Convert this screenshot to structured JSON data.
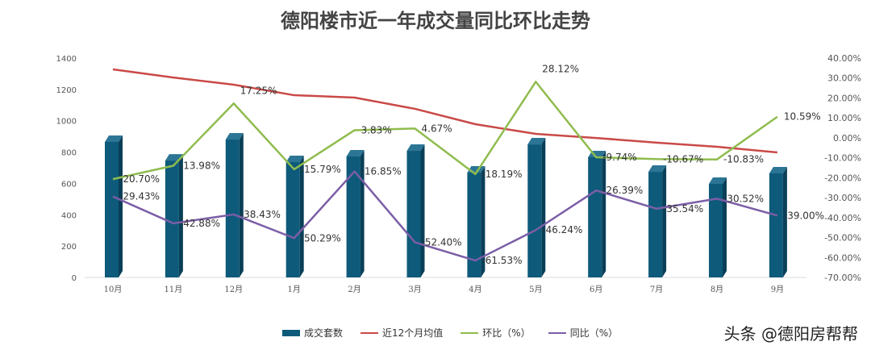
{
  "chart_data": {
    "type": "bar+line",
    "title": "德阳楼市近一年成交量同比环比走势",
    "categories": [
      "10月",
      "11月",
      "12月",
      "1月",
      "2月",
      "3月",
      "4月",
      "5月",
      "6月",
      "7月",
      "8月",
      "9月"
    ],
    "left_axis": {
      "ylim": [
        0,
        1400
      ],
      "ticks": [
        0,
        200,
        400,
        600,
        800,
        1000,
        1200,
        1400
      ]
    },
    "right_axis": {
      "ylim": [
        -70,
        40
      ],
      "ticks": [
        "40.00%",
        "30.00%",
        "20.00%",
        "10.00%",
        "0.00%",
        "-10.00%",
        "-20.00%",
        "-30.00%",
        "-40.00%",
        "-50.00%",
        "-60.00%",
        "-70.00%"
      ]
    },
    "series": [
      {
        "name": "成交套数",
        "type": "bar",
        "axis": "left",
        "color": "#0e5a7a",
        "values": [
          865,
          746,
          880,
          736,
          772,
          808,
          669,
          849,
          767,
          674,
          597,
          664
        ]
      },
      {
        "name": "近12个月均值",
        "type": "line",
        "axis": "left",
        "color": "#c94a48",
        "values": [
          1328,
          1276,
          1230,
          1163,
          1148,
          1076,
          978,
          916,
          890,
          860,
          834,
          798
        ]
      },
      {
        "name": "环比（%）",
        "type": "line",
        "axis": "right",
        "color": "#8fbc4e",
        "values": [
          -20.7,
          -13.98,
          17.25,
          -15.79,
          3.83,
          4.67,
          -18.19,
          28.12,
          -9.74,
          -10.67,
          -10.83,
          10.59
        ],
        "labels": [
          "-20.70%",
          "-13.98%",
          "17.25%",
          "-15.79%",
          "3.83%",
          "4.67%",
          "-18.19%",
          "28.12%",
          "-9.74%",
          "-10.67%",
          "-10.83%",
          "10.59%"
        ]
      },
      {
        "name": "同比（%）",
        "type": "line",
        "axis": "right",
        "color": "#7b5ea7",
        "values": [
          -29.43,
          -42.88,
          -38.43,
          -50.29,
          -16.85,
          -52.4,
          -61.53,
          -46.24,
          -26.39,
          -35.54,
          -30.52,
          -39.0
        ],
        "labels": [
          "-29.43%",
          "-42.88%",
          "-38.43%",
          "-50.29%",
          "-16.85%",
          "-52.40%",
          "-61.53%",
          "-46.24%",
          "-26.39%",
          "-35.54%",
          "-30.52%",
          "-39.00%"
        ]
      }
    ],
    "legend": "bottom",
    "grid": false
  },
  "watermark": "头条 @德阳房帮帮"
}
